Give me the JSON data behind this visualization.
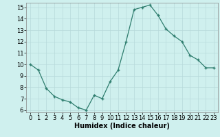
{
  "x": [
    0,
    1,
    2,
    3,
    4,
    5,
    6,
    7,
    8,
    9,
    10,
    11,
    12,
    13,
    14,
    15,
    16,
    17,
    18,
    19,
    20,
    21,
    22,
    23
  ],
  "y": [
    10,
    9.5,
    7.9,
    7.2,
    6.9,
    6.7,
    6.2,
    6.0,
    7.3,
    7.0,
    8.5,
    9.5,
    12.0,
    14.8,
    15.0,
    15.2,
    14.3,
    13.1,
    12.5,
    12.0,
    10.8,
    10.4,
    9.7,
    9.7
  ],
  "xlabel": "Humidex (Indice chaleur)",
  "ylim": [
    5.8,
    15.4
  ],
  "xlim": [
    -0.5,
    23.5
  ],
  "yticks": [
    6,
    7,
    8,
    9,
    10,
    11,
    12,
    13,
    14,
    15
  ],
  "xticks": [
    0,
    1,
    2,
    3,
    4,
    5,
    6,
    7,
    8,
    9,
    10,
    11,
    12,
    13,
    14,
    15,
    16,
    17,
    18,
    19,
    20,
    21,
    22,
    23
  ],
  "line_color": "#2e7d6e",
  "marker_color": "#2e7d6e",
  "bg_color": "#cff0ee",
  "grid_color": "#b8dada",
  "xlabel_fontsize": 7,
  "tick_fontsize": 6
}
